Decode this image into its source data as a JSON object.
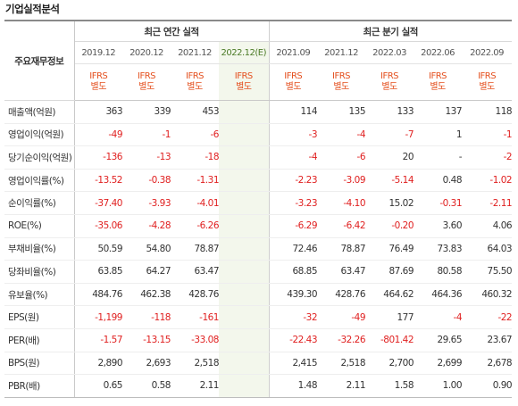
{
  "section_title": "기업실적분석",
  "header": {
    "row_label": "주요재무정보",
    "annual_group": "최근 연간 실적",
    "quarter_group": "최근 분기 실적",
    "annual_periods": [
      "2019.12",
      "2020.12",
      "2021.12",
      "2022.12(E)"
    ],
    "quarter_periods": [
      "2021.09",
      "2021.12",
      "2022.03",
      "2022.06",
      "2022.09"
    ],
    "ifrs_line1": "IFRS",
    "ifrs_line2": "별도"
  },
  "rows": [
    {
      "label": "매출액(억원)",
      "annual": [
        "363",
        "339",
        "453",
        ""
      ],
      "quarter": [
        "114",
        "135",
        "133",
        "137",
        "118"
      ]
    },
    {
      "label": "영업이익(억원)",
      "annual": [
        "-49",
        "-1",
        "-6",
        ""
      ],
      "quarter": [
        "-3",
        "-4",
        "-7",
        "1",
        "-1"
      ]
    },
    {
      "label": "당기순이익(억원)",
      "annual": [
        "-136",
        "-13",
        "-18",
        ""
      ],
      "quarter": [
        "-4",
        "-6",
        "20",
        "-",
        "-2"
      ]
    },
    {
      "label": "영업이익률(%)",
      "annual": [
        "-13.52",
        "-0.38",
        "-1.31",
        ""
      ],
      "quarter": [
        "-2.23",
        "-3.09",
        "-5.14",
        "0.48",
        "-1.02"
      ]
    },
    {
      "label": "순이익률(%)",
      "annual": [
        "-37.40",
        "-3.93",
        "-4.01",
        ""
      ],
      "quarter": [
        "-3.23",
        "-4.10",
        "15.02",
        "-0.31",
        "-2.11"
      ]
    },
    {
      "label": "ROE(%)",
      "annual": [
        "-35.06",
        "-4.28",
        "-6.26",
        ""
      ],
      "quarter": [
        "-6.29",
        "-6.42",
        "-0.20",
        "3.60",
        "4.06"
      ]
    },
    {
      "label": "부채비율(%)",
      "annual": [
        "50.59",
        "54.80",
        "78.87",
        ""
      ],
      "quarter": [
        "72.46",
        "78.87",
        "76.49",
        "73.83",
        "64.03"
      ]
    },
    {
      "label": "당좌비율(%)",
      "annual": [
        "63.85",
        "64.27",
        "63.47",
        ""
      ],
      "quarter": [
        "68.85",
        "63.47",
        "87.69",
        "80.58",
        "75.50"
      ]
    },
    {
      "label": "유보율(%)",
      "annual": [
        "484.76",
        "462.38",
        "428.76",
        ""
      ],
      "quarter": [
        "439.30",
        "428.76",
        "464.62",
        "464.36",
        "460.32"
      ]
    },
    {
      "label": "EPS(원)",
      "annual": [
        "-1,199",
        "-118",
        "-161",
        ""
      ],
      "quarter": [
        "-32",
        "-49",
        "177",
        "-4",
        "-22"
      ]
    },
    {
      "label": "PER(배)",
      "annual": [
        "-1.57",
        "-13.15",
        "-33.08",
        ""
      ],
      "quarter": [
        "-22.43",
        "-32.26",
        "-801.42",
        "29.65",
        "23.67"
      ]
    },
    {
      "label": "BPS(원)",
      "annual": [
        "2,890",
        "2,693",
        "2,518",
        ""
      ],
      "quarter": [
        "2,415",
        "2,518",
        "2,700",
        "2,699",
        "2,678"
      ]
    },
    {
      "label": "PBR(배)",
      "annual": [
        "0.65",
        "0.58",
        "2.11",
        ""
      ],
      "quarter": [
        "1.48",
        "2.11",
        "1.58",
        "1.00",
        "0.90"
      ]
    }
  ],
  "colors": {
    "negative": "#e02020",
    "ifrs": "#e4501f",
    "estimate_bg": "#f3f7ec",
    "estimate_text": "#4a7a25",
    "header_bg": "#f3f5f8"
  }
}
